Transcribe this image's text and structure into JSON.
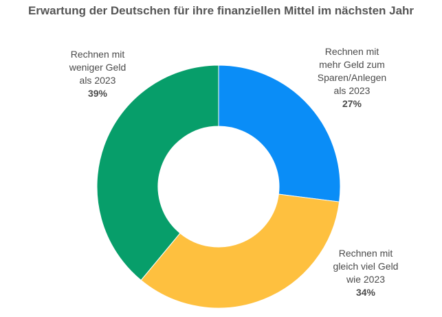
{
  "chart_data": {
    "type": "pie",
    "title": "Erwartung der Deutschen für ihre finanziellen Mittel im nächsten Jahr",
    "donut": true,
    "slices": [
      {
        "label": "Rechnen mit\nmehr Geld zum\nSparen/Anlegen\nals 2023",
        "value": 27,
        "value_label": "27%",
        "color": "#0a8df7"
      },
      {
        "label": "Rechnen mit\ngleich viel Geld\nwie 2023",
        "value": 34,
        "value_label": "34%",
        "color": "#fec03f"
      },
      {
        "label": "Rechnen mit\nweniger Geld\nals 2023",
        "value": 39,
        "value_label": "39%",
        "color": "#079e6a"
      }
    ]
  }
}
